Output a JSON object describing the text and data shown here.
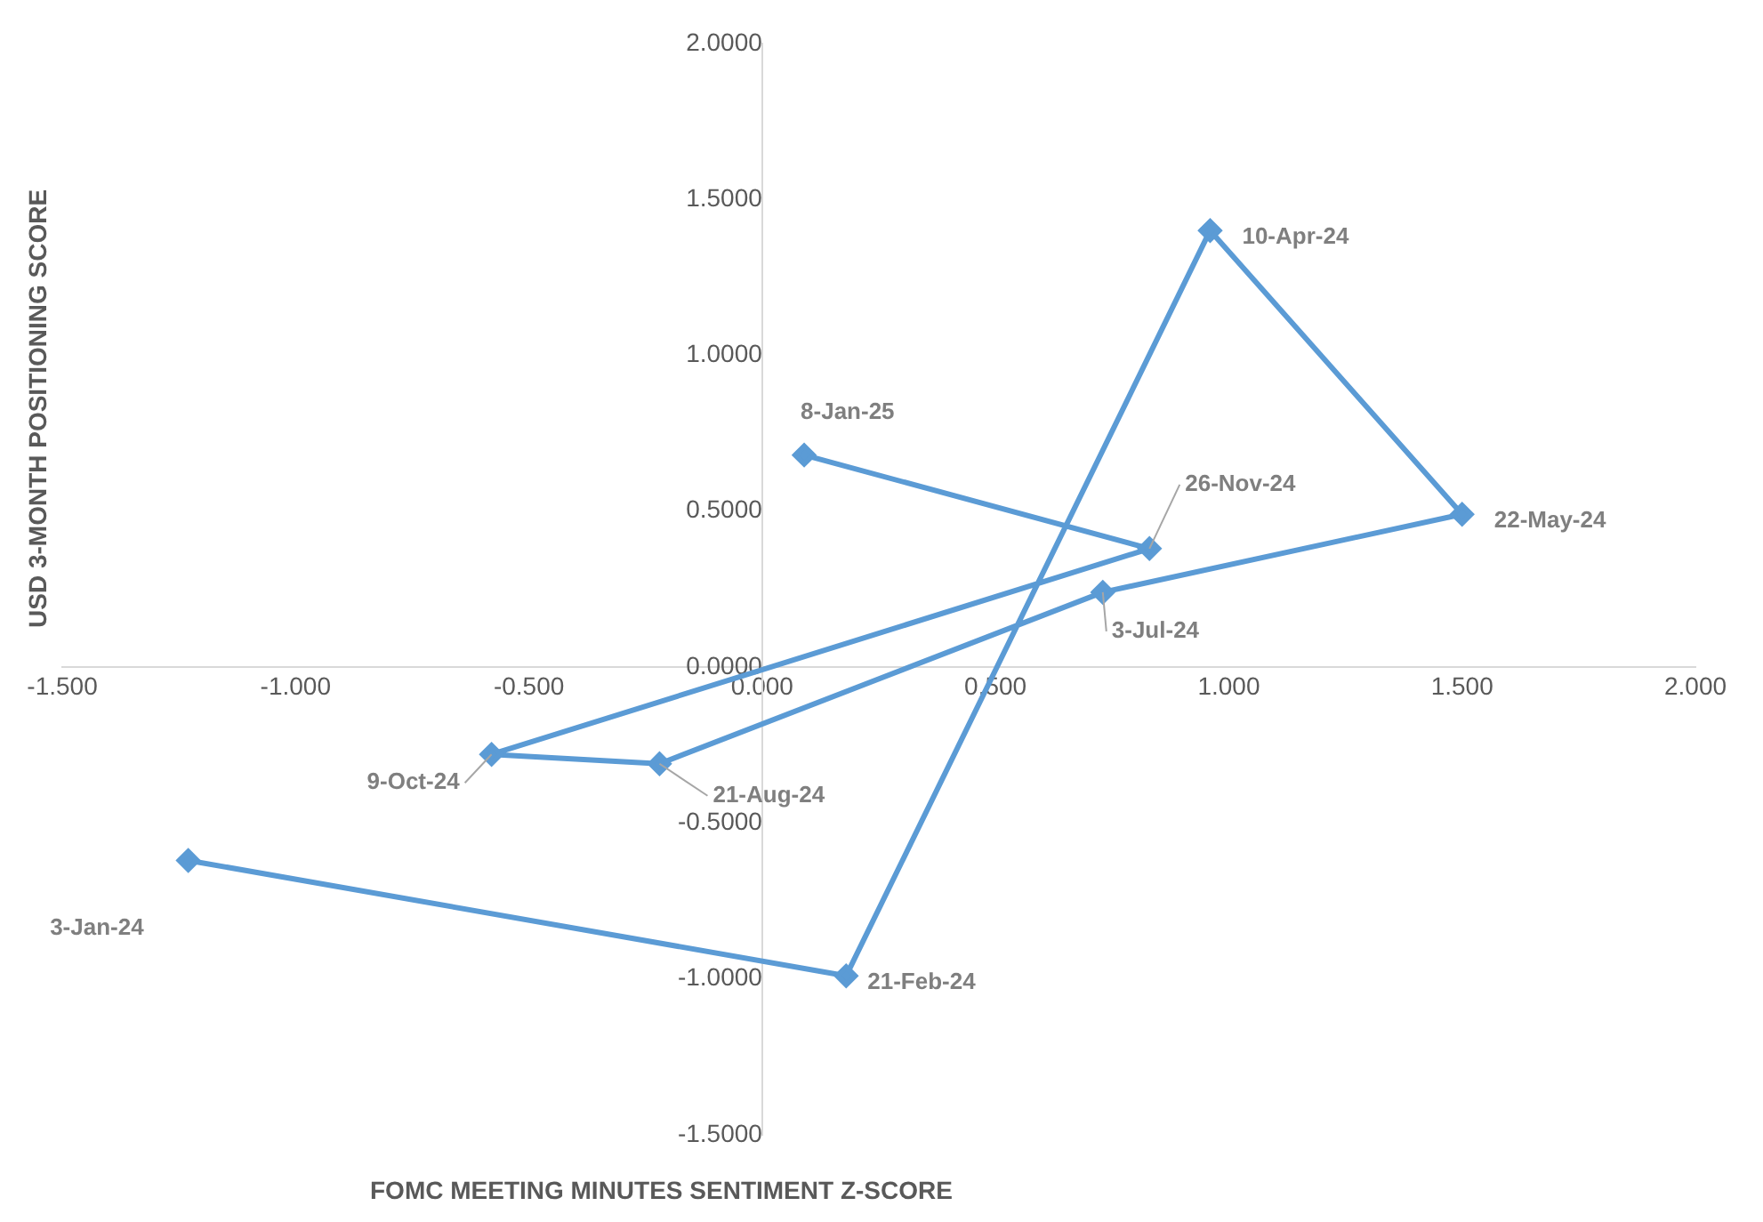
{
  "chart_data": {
    "type": "line",
    "xlabel": "FOMC MEETING MINUTES SENTIMENT Z-SCORE",
    "ylabel": "USD 3-MONTH POSITIONING SCORE",
    "x": [
      -1.23,
      0.18,
      0.96,
      1.5,
      0.73,
      -0.22,
      -0.58,
      0.83,
      0.09
    ],
    "series": [
      {
        "color": "#5b9bd5",
        "values": [
          -0.62,
          -0.99,
          1.4,
          0.49,
          0.24,
          -0.31,
          -0.28,
          0.38,
          0.68
        ]
      }
    ],
    "xlim": [
      -1.5,
      2.0
    ],
    "xticks": [
      {
        "value": -1.5,
        "label": "-1.500"
      },
      {
        "value": -1,
        "label": "-1.000"
      },
      {
        "value": -0.5,
        "label": "-0.500"
      },
      {
        "value": 0,
        "label": "0.000"
      },
      {
        "value": 0.5,
        "label": "0.500"
      },
      {
        "value": 1,
        "label": "1.000"
      },
      {
        "value": 1.5,
        "label": "1.500"
      },
      {
        "value": 2,
        "label": "2.000"
      }
    ],
    "ylim": [
      -1.5,
      2.0
    ],
    "yticks": [
      {
        "value": -1.5,
        "label": "-1.5000"
      },
      {
        "value": -1,
        "label": "-1.0000"
      },
      {
        "value": -0.5,
        "label": "-0.5000"
      },
      {
        "value": 0,
        "label": "0.0000"
      },
      {
        "value": 0.5,
        "label": "0.5000"
      },
      {
        "value": 1,
        "label": "1.0000"
      },
      {
        "value": 1.5,
        "label": "1.5000"
      },
      {
        "value": 2,
        "label": "2.0000"
      }
    ],
    "annotations": [
      {
        "text": "3-Jan-24",
        "x": -1.23,
        "y": -0.62
      },
      {
        "text": "21-Feb-24",
        "x": 0.18,
        "y": -0.99
      },
      {
        "text": "10-Apr-24",
        "x": 0.96,
        "y": 1.4
      },
      {
        "text": "22-May-24",
        "x": 1.5,
        "y": 0.49
      },
      {
        "text": "3-Jul-24",
        "x": 0.73,
        "y": 0.24
      },
      {
        "text": "21-Aug-24",
        "x": -0.22,
        "y": -0.31
      },
      {
        "text": "9-Oct-24",
        "x": -0.58,
        "y": -0.28
      },
      {
        "text": "26-Nov-24",
        "x": 0.83,
        "y": 0.38
      },
      {
        "text": "8-Jan-25",
        "x": 0.09,
        "y": 0.68
      }
    ],
    "grid": false,
    "legend": false,
    "marker": "diamond",
    "line_style": "solid"
  }
}
